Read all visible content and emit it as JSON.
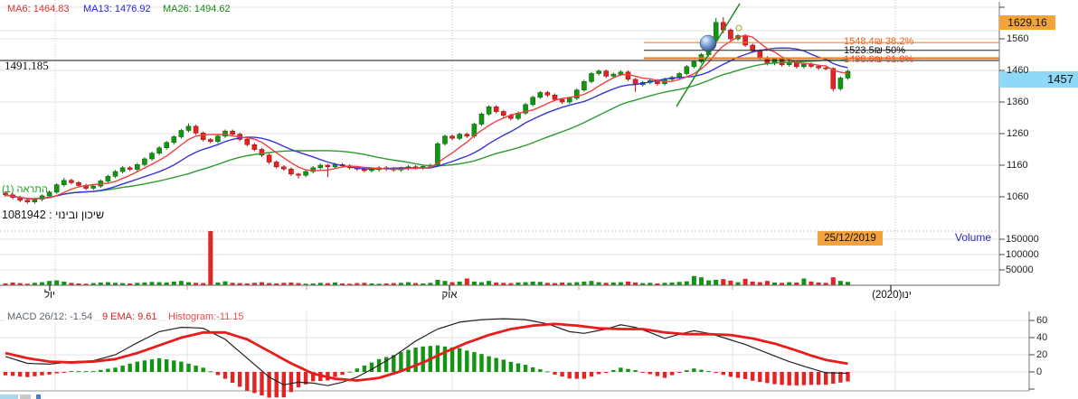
{
  "indicators_header": {
    "ma6": "MA6: 1464.83",
    "ma13": "MA13: 1476.92",
    "ma26": "MA26: 1494.62"
  },
  "price_axis": {
    "ticks": [
      "1560",
      "1460",
      "1360",
      "1260",
      "1160",
      "1060"
    ],
    "high_badge": "1629.16",
    "last_badge": "1457",
    "left_value": "1491.185"
  },
  "fib_labels": {
    "l382": "1548.4₪  38.2%",
    "l500": "1523.5₪  50%",
    "l618": "1498.6₪  61.8%"
  },
  "annotations": {
    "alert_note": "התראה (1)",
    "security_line": "שיכון ובינוי : 1081942",
    "date_badge": "25/12/2019"
  },
  "volume_panel": {
    "title": "Volume",
    "ticks": [
      "150000",
      "100000",
      "50000"
    ]
  },
  "x_axis": {
    "jul": "יול",
    "oct": "אוק",
    "jan": "ינו(2020)"
  },
  "macd_panel": {
    "macd_label": "MACD 26/12: -1.54",
    "ema_label": "9 EMA: 9.61",
    "hist_label": "Histogram:-11.15",
    "ticks": [
      "60",
      "40",
      "20",
      "0"
    ]
  },
  "colors": {
    "up": "#149414",
    "up_stroke": "#0b6b0b",
    "down": "#e32424",
    "down_stroke": "#a81111",
    "ma6": "#f04040",
    "ma13": "#3535d8",
    "ma26": "#2f9a2f",
    "fib_orange": "#e87820",
    "fib_black": "#222222",
    "macd_line": "#222222",
    "signal_line": "#e81c1c",
    "badge_orange": "#f2a43a",
    "badge_blue": "#8ed9f7",
    "grid": "#e3e3e3",
    "axis": "#777777"
  },
  "chart_data": {
    "type": "candlestick+volume+macd",
    "instrument": "שיכון ובינוי",
    "security_id": "1081942",
    "last_date": "25/12/2019",
    "last_close": 1457,
    "peak_price": 1629.16,
    "ma_periods": [
      6,
      13,
      26
    ],
    "price_ticks": [
      1560,
      1460,
      1360,
      1260,
      1160,
      1060
    ],
    "volume_ticks": [
      150000,
      100000,
      50000
    ],
    "macd_ticks": [
      60,
      40,
      20,
      0
    ],
    "fib_levels": [
      {
        "pct": "38.2%",
        "price": 1548.4
      },
      {
        "pct": "50%",
        "price": 1523.5
      },
      {
        "pct": "61.8%",
        "price": 1498.6
      }
    ],
    "months": [
      "יול",
      "אוק",
      "ינו(2020)"
    ],
    "opens_first": 1072,
    "closes": [
      1066,
      1058,
      1049,
      1044,
      1052,
      1063,
      1075,
      1098,
      1112,
      1105,
      1096,
      1087,
      1094,
      1110,
      1125,
      1140,
      1152,
      1147,
      1162,
      1180,
      1198,
      1215,
      1232,
      1250,
      1270,
      1283,
      1262,
      1241,
      1235,
      1252,
      1268,
      1258,
      1242,
      1225,
      1210,
      1192,
      1170,
      1155,
      1148,
      1132,
      1128,
      1140,
      1152,
      1160,
      1155,
      1162,
      1158,
      1152,
      1148,
      1143,
      1146,
      1152,
      1148,
      1145,
      1150,
      1155,
      1152,
      1156,
      1160,
      1228,
      1252,
      1245,
      1258,
      1252,
      1290,
      1322,
      1345,
      1330,
      1318,
      1308,
      1325,
      1352,
      1375,
      1390,
      1382,
      1368,
      1360,
      1372,
      1398,
      1425,
      1450,
      1458,
      1442,
      1448,
      1455,
      1432,
      1415,
      1422,
      1428,
      1418,
      1432,
      1438,
      1450,
      1472,
      1488,
      1510,
      1555,
      1612,
      1588,
      1560,
      1570,
      1540,
      1522,
      1500,
      1482,
      1495,
      1478,
      1486,
      1472,
      1480,
      1473,
      1468,
      1466,
      1402,
      1436,
      1457
    ],
    "wick_overrides": {
      "8": [
        1120,
        1092
      ],
      "25": [
        1292,
        1264
      ],
      "40": [
        1136,
        1118
      ],
      "44": [
        1164,
        1122
      ],
      "86": [
        1436,
        1392
      ],
      "97": [
        1626,
        1550
      ],
      "98": [
        1629,
        1578
      ],
      "113": [
        1470,
        1394
      ]
    },
    "volumes": [
      6000,
      9000,
      7000,
      5000,
      8000,
      10000,
      14000,
      16000,
      12000,
      8000,
      6000,
      5000,
      7000,
      9000,
      10000,
      8000,
      7000,
      6000,
      8000,
      9000,
      11000,
      10000,
      9000,
      12000,
      14000,
      10000,
      8000,
      7000,
      178000,
      9000,
      13000,
      8000,
      7000,
      6000,
      8000,
      10000,
      7000,
      6000,
      8000,
      9000,
      7000,
      5000,
      6000,
      8000,
      7000,
      9000,
      6000,
      5000,
      7000,
      8000,
      6000,
      5000,
      6000,
      7000,
      8000,
      10000,
      7000,
      6000,
      8000,
      18000,
      14000,
      10000,
      12000,
      22000,
      12000,
      10000,
      14000,
      9000,
      8000,
      7000,
      9000,
      10000,
      12000,
      11000,
      8000,
      7000,
      9000,
      8000,
      10000,
      12000,
      14000,
      10000,
      8000,
      9000,
      10000,
      12000,
      9000,
      7000,
      8000,
      6000,
      8000,
      9000,
      11000,
      13000,
      30000,
      26000,
      16000,
      18000,
      20000,
      15000,
      10000,
      21000,
      12000,
      10000,
      14000,
      9000,
      8000,
      10000,
      9000,
      22000,
      12000,
      9000,
      8000,
      26000,
      14000,
      11000
    ],
    "macd_keypoints": [
      [
        0,
        18
      ],
      [
        3,
        10
      ],
      [
        6,
        9
      ],
      [
        9,
        12
      ],
      [
        12,
        13
      ],
      [
        15,
        20
      ],
      [
        18,
        34
      ],
      [
        21,
        47
      ],
      [
        24,
        52
      ],
      [
        27,
        51
      ],
      [
        30,
        38
      ],
      [
        33,
        16
      ],
      [
        36,
        -6
      ],
      [
        38,
        -15
      ],
      [
        40,
        -12
      ],
      [
        42,
        -13
      ],
      [
        44,
        -16
      ],
      [
        46,
        -12
      ],
      [
        48,
        -6
      ],
      [
        50,
        3
      ],
      [
        53,
        18
      ],
      [
        56,
        36
      ],
      [
        59,
        50
      ],
      [
        62,
        58
      ],
      [
        65,
        61
      ],
      [
        68,
        62
      ],
      [
        71,
        61
      ],
      [
        74,
        56
      ],
      [
        77,
        47
      ],
      [
        79,
        45
      ],
      [
        82,
        50
      ],
      [
        84,
        55
      ],
      [
        86,
        52
      ],
      [
        88,
        46
      ],
      [
        90,
        39
      ],
      [
        92,
        44
      ],
      [
        94,
        48
      ],
      [
        96,
        45
      ],
      [
        98,
        40
      ],
      [
        101,
        32
      ],
      [
        104,
        22
      ],
      [
        107,
        12
      ],
      [
        110,
        4
      ],
      [
        112,
        -1
      ],
      [
        115,
        -1.54
      ]
    ],
    "signal_keypoints": [
      [
        0,
        22
      ],
      [
        3,
        16
      ],
      [
        6,
        12
      ],
      [
        9,
        11
      ],
      [
        12,
        12
      ],
      [
        15,
        15
      ],
      [
        18,
        22
      ],
      [
        21,
        31
      ],
      [
        24,
        40
      ],
      [
        27,
        46
      ],
      [
        30,
        46
      ],
      [
        33,
        38
      ],
      [
        36,
        24
      ],
      [
        39,
        10
      ],
      [
        42,
        -2
      ],
      [
        45,
        -8
      ],
      [
        48,
        -10
      ],
      [
        51,
        -7
      ],
      [
        54,
        1
      ],
      [
        57,
        11
      ],
      [
        60,
        23
      ],
      [
        63,
        34
      ],
      [
        66,
        43
      ],
      [
        69,
        50
      ],
      [
        72,
        54
      ],
      [
        75,
        56
      ],
      [
        78,
        54
      ],
      [
        81,
        51
      ],
      [
        84,
        50
      ],
      [
        87,
        50
      ],
      [
        90,
        46
      ],
      [
        93,
        44
      ],
      [
        96,
        44
      ],
      [
        99,
        43
      ],
      [
        102,
        39
      ],
      [
        105,
        33
      ],
      [
        108,
        25
      ],
      [
        110,
        19
      ],
      [
        112,
        14
      ],
      [
        115,
        9.61
      ]
    ],
    "macd_last": -1.54,
    "signal_last": 9.61,
    "histogram_last": -11.15
  }
}
